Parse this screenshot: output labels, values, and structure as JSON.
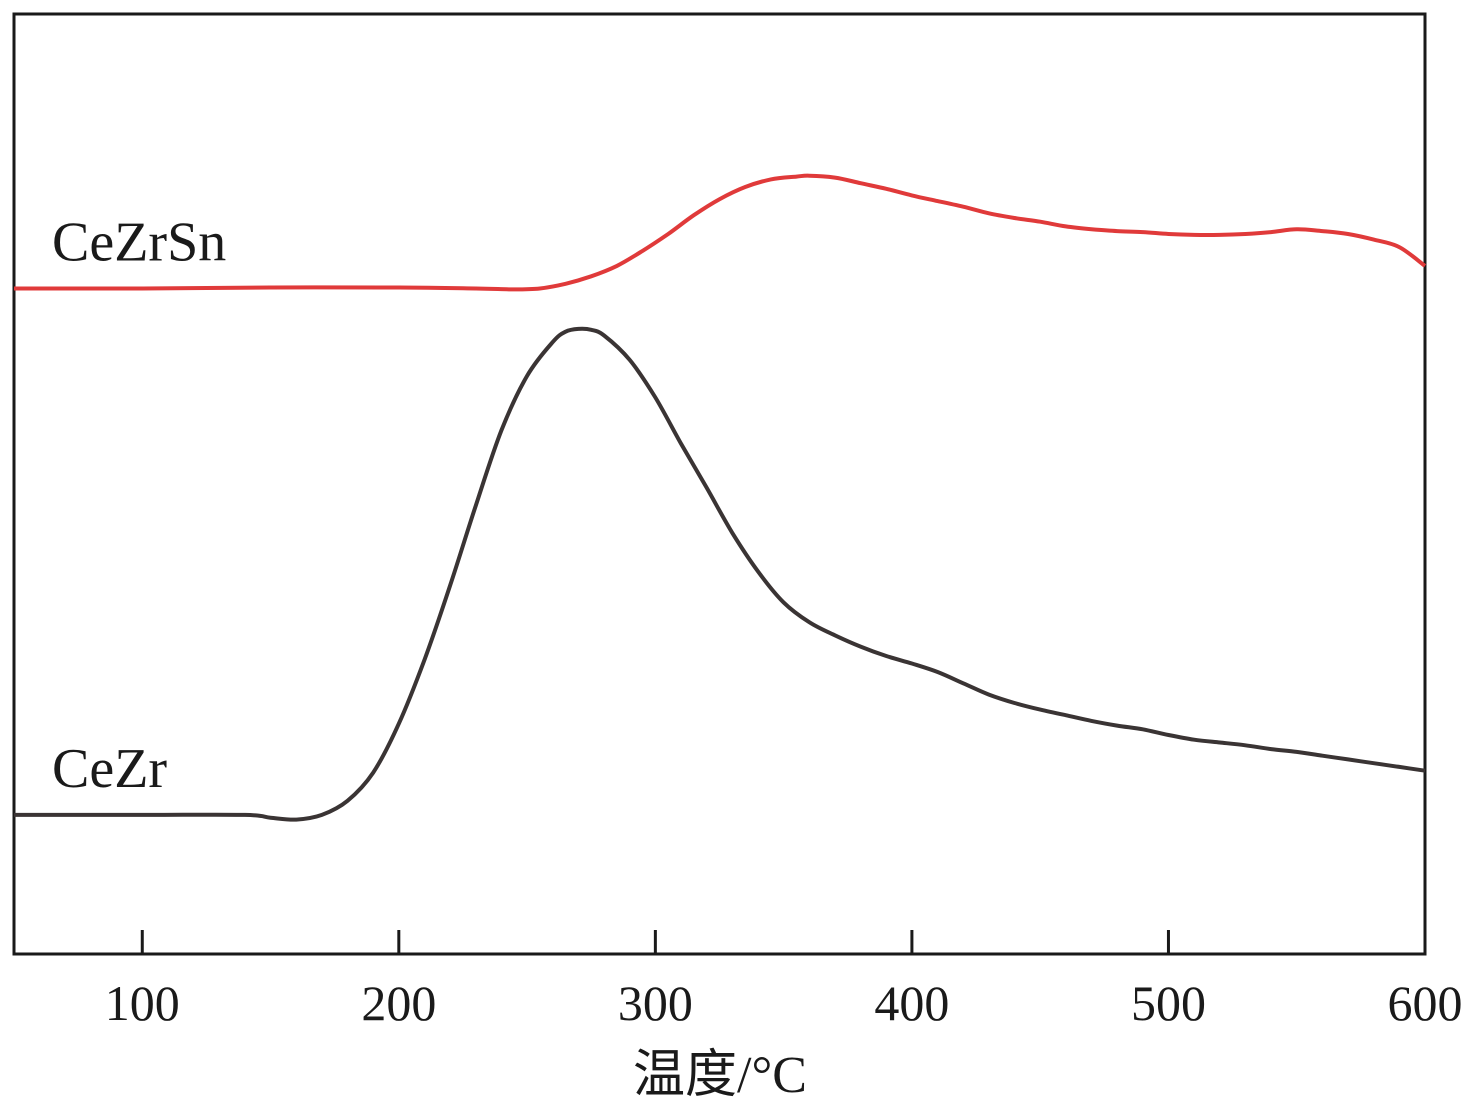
{
  "chart_data": {
    "type": "line",
    "title": "",
    "xlabel": "温度/°C",
    "ylabel": "",
    "xlim": [
      50,
      600
    ],
    "ylim": [
      0,
      100
    ],
    "xticks": [
      100,
      200,
      300,
      400,
      500,
      600
    ],
    "yticks": [],
    "grid": false,
    "legend": "none",
    "series": [
      {
        "name": "CeZrSn",
        "color": "#e03a3a",
        "points": [
          [
            50,
            70.8
          ],
          [
            100,
            70.8
          ],
          [
            150,
            70.9
          ],
          [
            200,
            70.9
          ],
          [
            230,
            70.8
          ],
          [
            245,
            70.7
          ],
          [
            255,
            70.8
          ],
          [
            265,
            71.3
          ],
          [
            275,
            72.1
          ],
          [
            285,
            73.2
          ],
          [
            295,
            74.8
          ],
          [
            305,
            76.6
          ],
          [
            315,
            78.6
          ],
          [
            325,
            80.3
          ],
          [
            335,
            81.6
          ],
          [
            345,
            82.4
          ],
          [
            355,
            82.7
          ],
          [
            360,
            82.8
          ],
          [
            370,
            82.6
          ],
          [
            380,
            82.0
          ],
          [
            390,
            81.4
          ],
          [
            400,
            80.7
          ],
          [
            410,
            80.1
          ],
          [
            420,
            79.5
          ],
          [
            430,
            78.8
          ],
          [
            440,
            78.3
          ],
          [
            450,
            77.9
          ],
          [
            460,
            77.4
          ],
          [
            470,
            77.1
          ],
          [
            480,
            76.9
          ],
          [
            490,
            76.8
          ],
          [
            500,
            76.6
          ],
          [
            510,
            76.5
          ],
          [
            520,
            76.5
          ],
          [
            530,
            76.6
          ],
          [
            540,
            76.8
          ],
          [
            550,
            77.1
          ],
          [
            560,
            76.9
          ],
          [
            570,
            76.6
          ],
          [
            580,
            76.0
          ],
          [
            590,
            75.2
          ],
          [
            600,
            73.2
          ]
        ]
      },
      {
        "name": "CeZr",
        "color": "#3a3434",
        "points": [
          [
            50,
            14.8
          ],
          [
            100,
            14.8
          ],
          [
            140,
            14.8
          ],
          [
            150,
            14.5
          ],
          [
            160,
            14.3
          ],
          [
            170,
            14.8
          ],
          [
            180,
            16.3
          ],
          [
            190,
            19.3
          ],
          [
            200,
            24.5
          ],
          [
            210,
            31.3
          ],
          [
            220,
            39.2
          ],
          [
            230,
            47.7
          ],
          [
            240,
            55.7
          ],
          [
            250,
            61.5
          ],
          [
            260,
            65.1
          ],
          [
            265,
            66.2
          ],
          [
            270,
            66.5
          ],
          [
            275,
            66.4
          ],
          [
            280,
            65.8
          ],
          [
            290,
            63.2
          ],
          [
            300,
            59.2
          ],
          [
            310,
            54.3
          ],
          [
            320,
            49.6
          ],
          [
            330,
            44.8
          ],
          [
            340,
            40.7
          ],
          [
            350,
            37.4
          ],
          [
            360,
            35.3
          ],
          [
            370,
            33.9
          ],
          [
            380,
            32.7
          ],
          [
            390,
            31.7
          ],
          [
            400,
            30.9
          ],
          [
            410,
            30.0
          ],
          [
            420,
            28.8
          ],
          [
            430,
            27.6
          ],
          [
            440,
            26.7
          ],
          [
            450,
            26.0
          ],
          [
            460,
            25.4
          ],
          [
            470,
            24.8
          ],
          [
            480,
            24.3
          ],
          [
            490,
            23.9
          ],
          [
            500,
            23.3
          ],
          [
            510,
            22.8
          ],
          [
            520,
            22.5
          ],
          [
            530,
            22.2
          ],
          [
            540,
            21.8
          ],
          [
            550,
            21.5
          ],
          [
            560,
            21.1
          ],
          [
            570,
            20.7
          ],
          [
            580,
            20.3
          ],
          [
            590,
            19.9
          ],
          [
            600,
            19.5
          ]
        ]
      }
    ]
  }
}
